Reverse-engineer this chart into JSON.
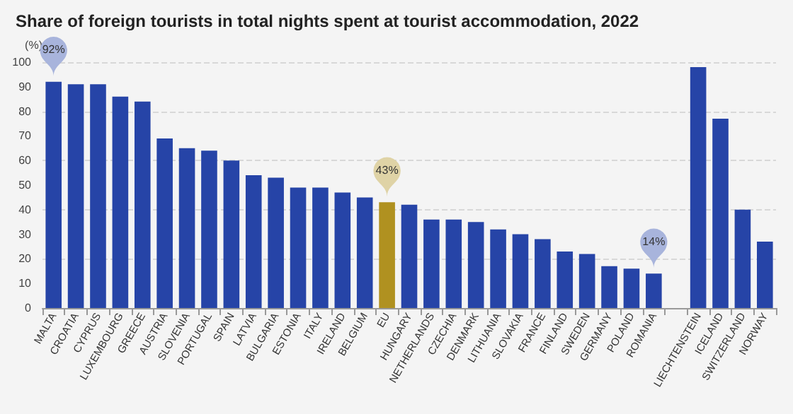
{
  "chart_data": {
    "type": "bar",
    "title": "Share of foreign tourists in total nights spent at tourist accommodation, 2022",
    "ylabel": "(%)",
    "categories": [
      "MALTA",
      "CROATIA",
      "CYPRUS",
      "LUXEMBOURG",
      "GREECE",
      "AUSTRIA",
      "SLOVENIA",
      "PORTUGAL",
      "SPAIN",
      "LATVIA",
      "BULGARIA",
      "ESTONIA",
      "ITALY",
      "IRELAND",
      "BELGIUM",
      "EU",
      "HUNGARY",
      "NETHERLANDS",
      "CZECHIA",
      "DENMARK",
      "LITHUANIA",
      "SLOVAKIA",
      "FRANCE",
      "FINLAND",
      "SWEDEN",
      "GERMANY",
      "POLAND",
      "ROMANIA",
      null,
      "LIECHTENSTEIN",
      "ICELAND",
      "SWITZERLAND",
      "NORWAY"
    ],
    "values": [
      92,
      91,
      91,
      86,
      84,
      69,
      65,
      64,
      60,
      54,
      53,
      49,
      49,
      47,
      45,
      43,
      42,
      36,
      36,
      35,
      32,
      30,
      28,
      23,
      22,
      17,
      16,
      14,
      null,
      98,
      77,
      40,
      27
    ],
    "colors": [
      "#2644a7",
      "#2644a7",
      "#2644a7",
      "#2644a7",
      "#2644a7",
      "#2644a7",
      "#2644a7",
      "#2644a7",
      "#2644a7",
      "#2644a7",
      "#2644a7",
      "#2644a7",
      "#2644a7",
      "#2644a7",
      "#2644a7",
      "#b09120",
      "#2644a7",
      "#2644a7",
      "#2644a7",
      "#2644a7",
      "#2644a7",
      "#2644a7",
      "#2644a7",
      "#2644a7",
      "#2644a7",
      "#2644a7",
      "#2644a7",
      "#2644a7",
      null,
      "#2644a7",
      "#2644a7",
      "#2644a7",
      "#2644a7"
    ],
    "ylim": [
      0,
      100
    ],
    "yticks": [
      0,
      10,
      20,
      30,
      40,
      50,
      60,
      70,
      80,
      90,
      100
    ],
    "grid": "y",
    "annotations": [
      {
        "text": "92%",
        "x": "MALTA",
        "y": 92
      },
      {
        "text": "43%",
        "x": "EU",
        "y": 43
      },
      {
        "text": "14%",
        "x": "ROMANIA",
        "y": 14
      }
    ]
  }
}
